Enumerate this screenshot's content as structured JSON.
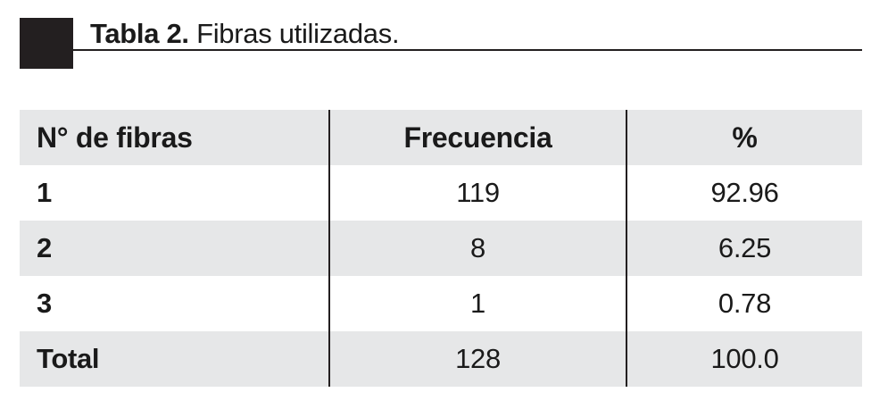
{
  "title": {
    "label": "Tabla 2.",
    "text": "Fibras utilizadas."
  },
  "table": {
    "headers": [
      "N° de fibras",
      "Frecuencia",
      "%"
    ],
    "rows": [
      [
        "1",
        "119",
        "92.96"
      ],
      [
        "2",
        "8",
        "6.25"
      ],
      [
        "3",
        "1",
        "0.78"
      ],
      [
        "Total",
        "128",
        "100.0"
      ]
    ]
  }
}
